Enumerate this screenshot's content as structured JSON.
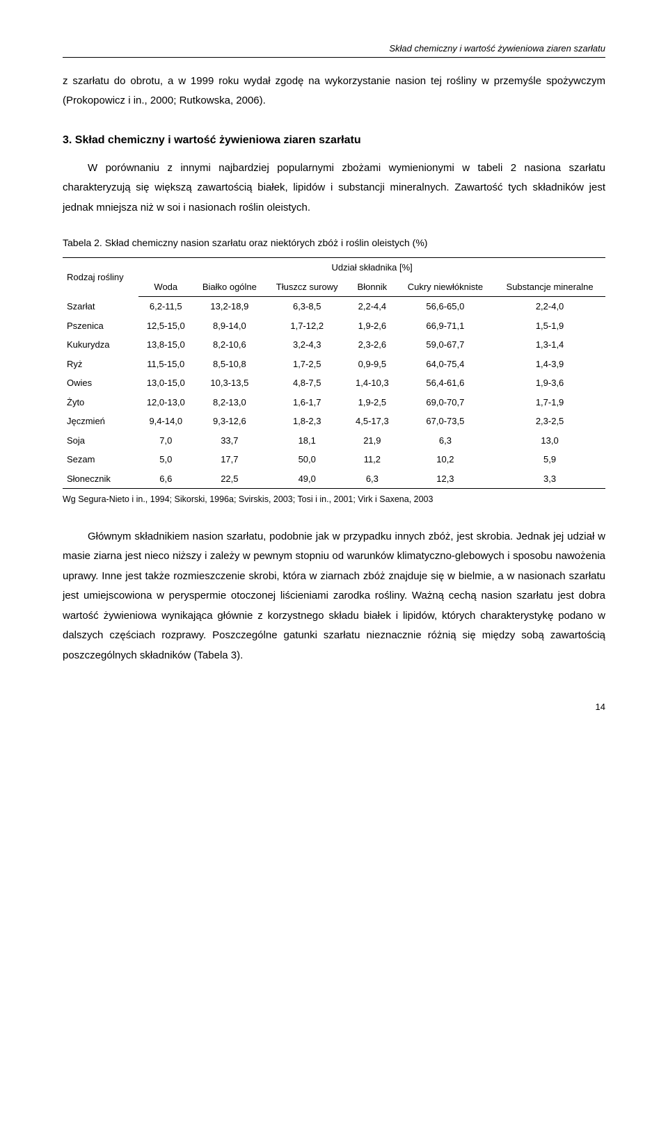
{
  "header": {
    "running_title": "Skład chemiczny i wartość żywieniowa ziaren szarłatu"
  },
  "para1": "z szarłatu do obrotu, a w 1999 roku wydał zgodę na wykorzystanie nasion tej rośliny w przemyśle spożywczym (Prokopowicz i in., 2000; Rutkowska, 2006).",
  "section3": {
    "number": "3.",
    "title": "Skład chemiczny i wartość żywieniowa ziaren szarłatu"
  },
  "para2": "W porównaniu z innymi najbardziej popularnymi zbożami wymienionymi w tabeli 2 nasiona szarłatu charakteryzują się większą zawartością białek, lipidów i substancji mineralnych. Zawartość tych składników jest jednak mniejsza niż w soi i nasionach roślin oleistych.",
  "table": {
    "caption": "Tabela 2. Skład chemiczny nasion szarłatu oraz niektórych zbóż i roślin oleistych (%)",
    "col_rodzaj": "Rodzaj rośliny",
    "group_header": "Udział składnika [%]",
    "col_woda": "Woda",
    "col_bialko": "Białko ogólne",
    "col_tluszcz": "Tłuszcz surowy",
    "col_blonnik": "Błonnik",
    "col_cukry": "Cukry niewłókniste",
    "col_subst": "Substancje mineralne",
    "rows": [
      {
        "name": "Szarłat",
        "woda": "6,2-11,5",
        "bialko": "13,2-18,9",
        "tluszcz": "6,3-8,5",
        "blonnik": "2,2-4,4",
        "cukry": "56,6-65,0",
        "subst": "2,2-4,0"
      },
      {
        "name": "Pszenica",
        "woda": "12,5-15,0",
        "bialko": "8,9-14,0",
        "tluszcz": "1,7-12,2",
        "blonnik": "1,9-2,6",
        "cukry": "66,9-71,1",
        "subst": "1,5-1,9"
      },
      {
        "name": "Kukurydza",
        "woda": "13,8-15,0",
        "bialko": "8,2-10,6",
        "tluszcz": "3,2-4,3",
        "blonnik": "2,3-2,6",
        "cukry": "59,0-67,7",
        "subst": "1,3-1,4"
      },
      {
        "name": "Ryż",
        "woda": "11,5-15,0",
        "bialko": "8,5-10,8",
        "tluszcz": "1,7-2,5",
        "blonnik": "0,9-9,5",
        "cukry": "64,0-75,4",
        "subst": "1,4-3,9"
      },
      {
        "name": "Owies",
        "woda": "13,0-15,0",
        "bialko": "10,3-13,5",
        "tluszcz": "4,8-7,5",
        "blonnik": "1,4-10,3",
        "cukry": "56,4-61,6",
        "subst": "1,9-3,6"
      },
      {
        "name": "Żyto",
        "woda": "12,0-13,0",
        "bialko": "8,2-13,0",
        "tluszcz": "1,6-1,7",
        "blonnik": "1,9-2,5",
        "cukry": "69,0-70,7",
        "subst": "1,7-1,9"
      },
      {
        "name": "Jęczmień",
        "woda": "9,4-14,0",
        "bialko": "9,3-12,6",
        "tluszcz": "1,8-2,3",
        "blonnik": "4,5-17,3",
        "cukry": "67,0-73,5",
        "subst": "2,3-2,5"
      },
      {
        "name": "Soja",
        "woda": "7,0",
        "bialko": "33,7",
        "tluszcz": "18,1",
        "blonnik": "21,9",
        "cukry": "6,3",
        "subst": "13,0"
      },
      {
        "name": "Sezam",
        "woda": "5,0",
        "bialko": "17,7",
        "tluszcz": "50,0",
        "blonnik": "11,2",
        "cukry": "10,2",
        "subst": "5,9"
      },
      {
        "name": "Słonecznik",
        "woda": "6,6",
        "bialko": "22,5",
        "tluszcz": "49,0",
        "blonnik": "6,3",
        "cukry": "12,3",
        "subst": "3,3"
      }
    ],
    "source": "Wg Segura-Nieto i in., 1994; Sikorski, 1996a; Svirskis, 2003; Tosi i in., 2001; Virk i Saxena, 2003"
  },
  "para3": "Głównym składnikiem nasion szarłatu, podobnie jak w przypadku innych zbóż, jest skrobia. Jednak jej udział w masie ziarna jest nieco niższy i zależy w pewnym stopniu od warunków klimatyczno-glebowych i sposobu nawożenia uprawy. Inne jest także rozmieszczenie skrobi, która w ziarnach zbóż znajduje się w bielmie, a w nasionach szarłatu jest umiejscowiona w peryspermie otoczonej liścieniami zarodka rośliny. Ważną cechą nasion szarłatu jest dobra wartość żywieniowa wynikająca głównie z korzystnego składu białek i lipidów, których charakterystykę podano w dalszych częściach rozprawy. Poszczególne gatunki szarłatu nieznacznie różnią się między sobą zawartością poszczególnych składników (Tabela 3).",
  "page_number": "14"
}
